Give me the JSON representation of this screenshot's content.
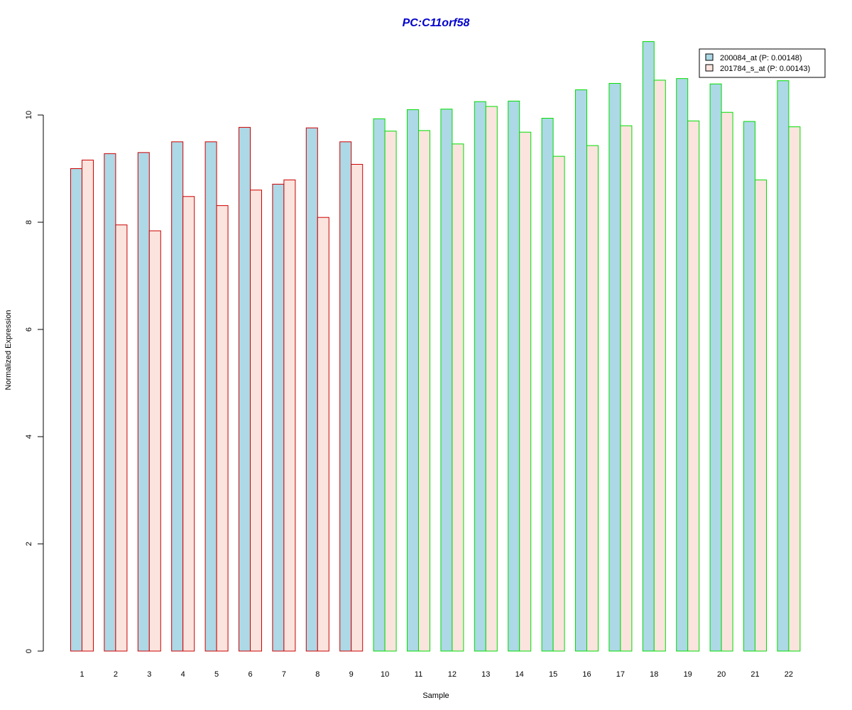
{
  "chart_data": {
    "type": "bar",
    "title": "PC:C11orf58",
    "xlabel": "Sample",
    "ylabel": "Normalized Expression",
    "ylim": [
      0,
      11.5
    ],
    "yticks": [
      0,
      2,
      4,
      6,
      8,
      10
    ],
    "grid": false,
    "legend_position": "top-right",
    "categories": [
      "1",
      "2",
      "3",
      "4",
      "5",
      "6",
      "7",
      "8",
      "9",
      "10",
      "11",
      "12",
      "13",
      "14",
      "15",
      "16",
      "17",
      "18",
      "19",
      "20",
      "21",
      "22"
    ],
    "series": [
      {
        "name": "200084_at (P: 0.00148)",
        "fill": "#add8e6",
        "values": [
          9.0,
          9.28,
          9.3,
          9.5,
          9.5,
          9.77,
          8.71,
          9.76,
          9.5,
          9.93,
          10.1,
          10.11,
          10.25,
          10.26,
          9.94,
          10.47,
          10.59,
          11.37,
          10.68,
          10.58,
          9.88,
          10.64
        ]
      },
      {
        "name": "201784_s_at (P: 0.00143)",
        "fill": "#fbe4de",
        "values": [
          9.16,
          7.95,
          7.84,
          8.48,
          8.31,
          8.6,
          8.79,
          8.09,
          9.08,
          9.7,
          9.71,
          9.46,
          10.16,
          9.68,
          9.23,
          9.43,
          9.8,
          10.65,
          9.89,
          10.05,
          8.79,
          9.78
        ]
      }
    ],
    "group_border_colors": [
      "#cc0000",
      "#cc0000",
      "#cc0000",
      "#cc0000",
      "#cc0000",
      "#cc0000",
      "#cc0000",
      "#cc0000",
      "#cc0000",
      "#00dd00",
      "#00dd00",
      "#00dd00",
      "#00dd00",
      "#00dd00",
      "#00dd00",
      "#00dd00",
      "#00dd00",
      "#00dd00",
      "#00dd00",
      "#00dd00",
      "#00dd00",
      "#00dd00"
    ],
    "title_color": "#0000cc"
  }
}
